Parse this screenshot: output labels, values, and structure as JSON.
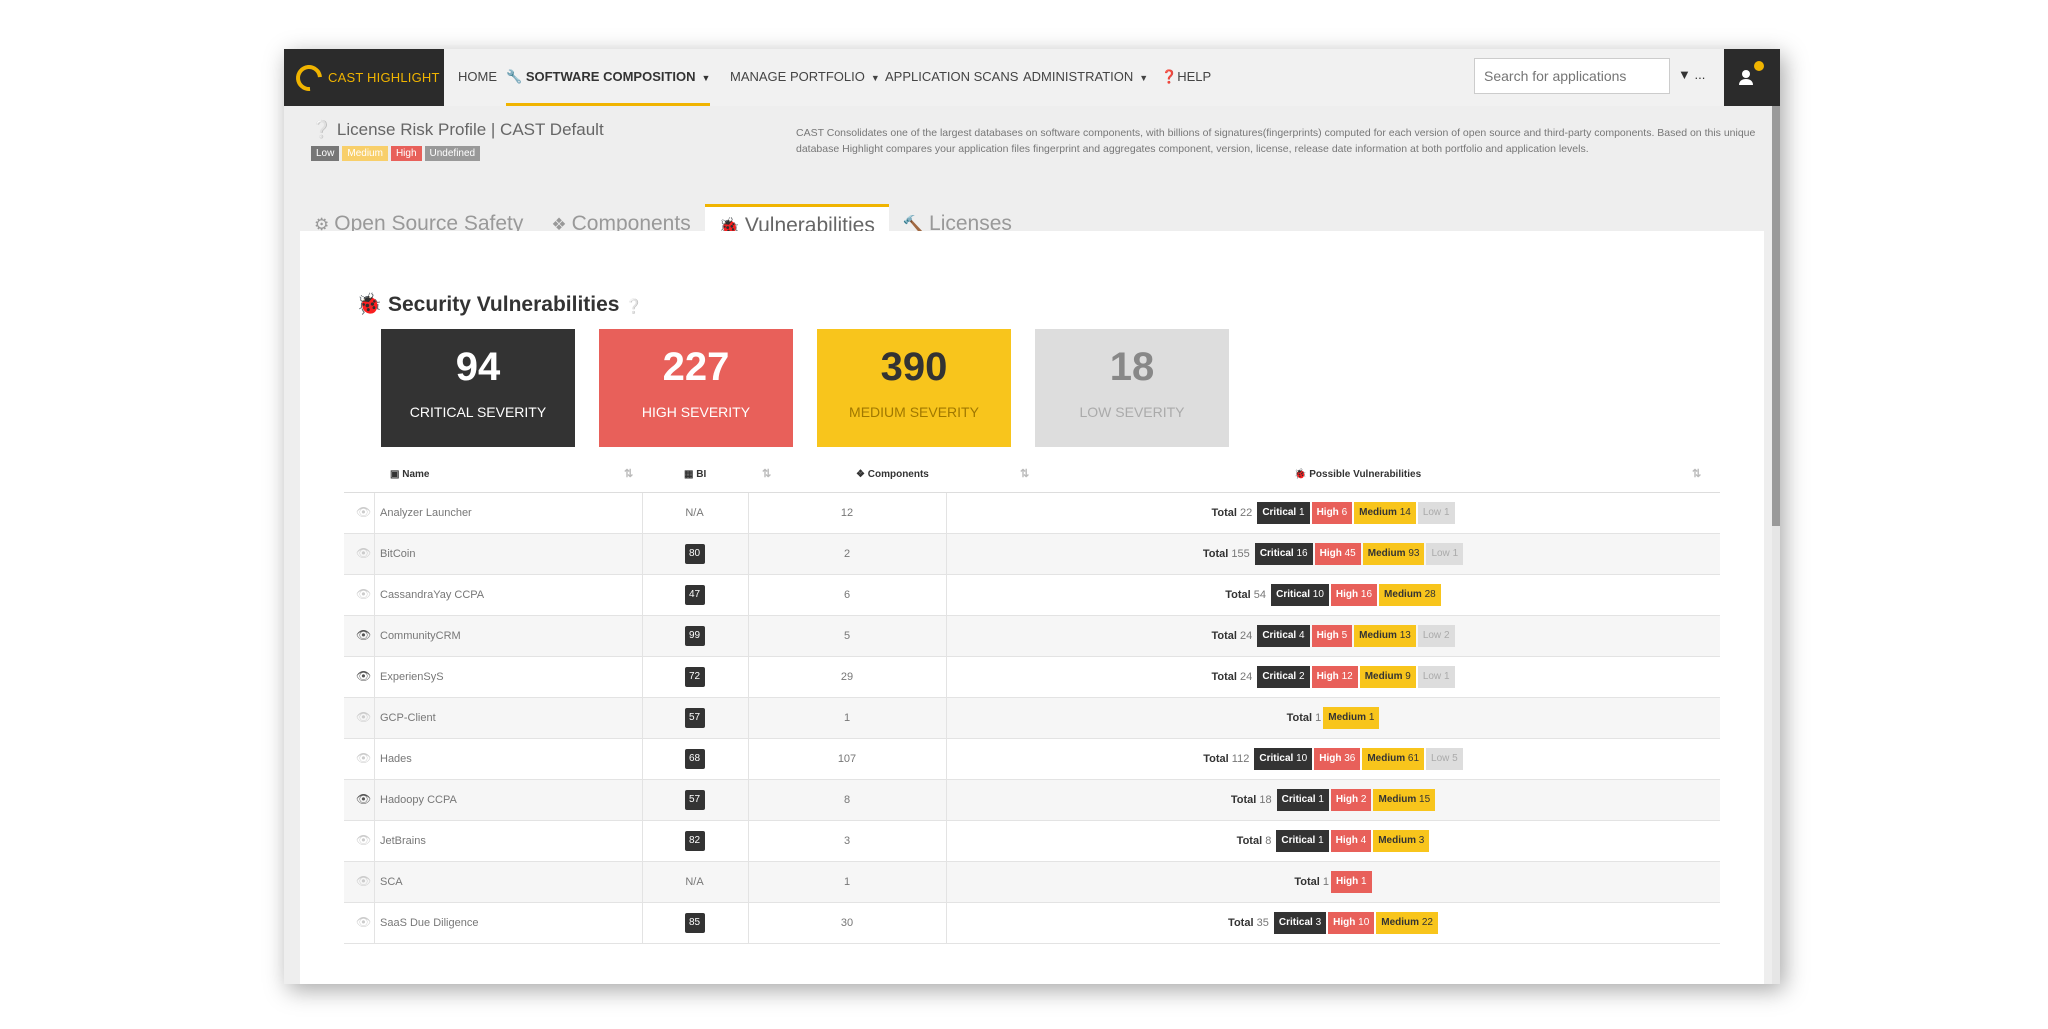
{
  "nav": {
    "logo_text": "CAST HIGHLIGHT",
    "items": [
      "HOME",
      "SOFTWARE COMPOSITION",
      "MANAGE PORTFOLIO",
      "APPLICATION SCANS",
      "ADMINISTRATION",
      "HELP"
    ],
    "search_placeholder": "Search for applications",
    "filter_label": "..."
  },
  "header": {
    "profile_title": "License Risk Profile | CAST Default",
    "legend": [
      "Low",
      "Medium",
      "High",
      "Undefined"
    ],
    "description": "CAST Consolidates one of the largest databases on software components, with billions of signatures(fingerprints) computed for each version of open source and third-party components. Based on this unique database Highlight compares your application files fingerprint and aggregates component, version, license, release date information at both portfolio and application levels."
  },
  "tabs": [
    "Open Source Safety",
    "Components",
    "Vulnerabilities",
    "Licenses"
  ],
  "section": {
    "title": "Security Vulnerabilities",
    "cards": [
      {
        "value": "94",
        "label": "CRITICAL SEVERITY"
      },
      {
        "value": "227",
        "label": "HIGH SEVERITY"
      },
      {
        "value": "390",
        "label": "MEDIUM SEVERITY"
      },
      {
        "value": "18",
        "label": "LOW SEVERITY"
      }
    ]
  },
  "table": {
    "headers": [
      "Name",
      "BI",
      "Components",
      "Possible Vulnerabilities"
    ],
    "rows": [
      {
        "name": "Analyzer Launcher",
        "bi": "N/A",
        "components": "12",
        "total": "22",
        "critical": "1",
        "high": "6",
        "medium": "14",
        "low": "1",
        "watched": false
      },
      {
        "name": "BitCoin",
        "bi": "80",
        "components": "2",
        "total": "155",
        "critical": "16",
        "high": "45",
        "medium": "93",
        "low": "1",
        "watched": false
      },
      {
        "name": "CassandraYay CCPA",
        "bi": "47",
        "components": "6",
        "total": "54",
        "critical": "10",
        "high": "16",
        "medium": "28",
        "low": null,
        "watched": false
      },
      {
        "name": "CommunityCRM",
        "bi": "99",
        "components": "5",
        "total": "24",
        "critical": "4",
        "high": "5",
        "medium": "13",
        "low": "2",
        "watched": true
      },
      {
        "name": "ExperienSyS",
        "bi": "72",
        "components": "29",
        "total": "24",
        "critical": "2",
        "high": "12",
        "medium": "9",
        "low": "1",
        "watched": true
      },
      {
        "name": "GCP-Client",
        "bi": "57",
        "components": "1",
        "total": "1",
        "critical": null,
        "high": null,
        "medium": "1",
        "low": null,
        "watched": false
      },
      {
        "name": "Hades",
        "bi": "68",
        "components": "107",
        "total": "112",
        "critical": "10",
        "high": "36",
        "medium": "61",
        "low": "5",
        "watched": false
      },
      {
        "name": "Hadoopy CCPA",
        "bi": "57",
        "components": "8",
        "total": "18",
        "critical": "1",
        "high": "2",
        "medium": "15",
        "low": null,
        "watched": true
      },
      {
        "name": "JetBrains",
        "bi": "82",
        "components": "3",
        "total": "8",
        "critical": "1",
        "high": "4",
        "medium": "3",
        "low": null,
        "watched": false
      },
      {
        "name": "SCA",
        "bi": "N/A",
        "components": "1",
        "total": "1",
        "critical": null,
        "high": "1",
        "medium": null,
        "low": null,
        "watched": false
      },
      {
        "name": "SaaS Due Diligence",
        "bi": "85",
        "components": "30",
        "total": "35",
        "critical": "3",
        "high": "10",
        "medium": "22",
        "low": null,
        "watched": false
      }
    ],
    "badge_labels": {
      "total": "Total",
      "critical": "Critical",
      "high": "High",
      "medium": "Medium",
      "low": "Low"
    }
  },
  "colors": {
    "accent": "#f0b400",
    "critical": "#333333",
    "high": "#e8605a",
    "medium": "#f8c51c",
    "low": "#dddddd"
  }
}
